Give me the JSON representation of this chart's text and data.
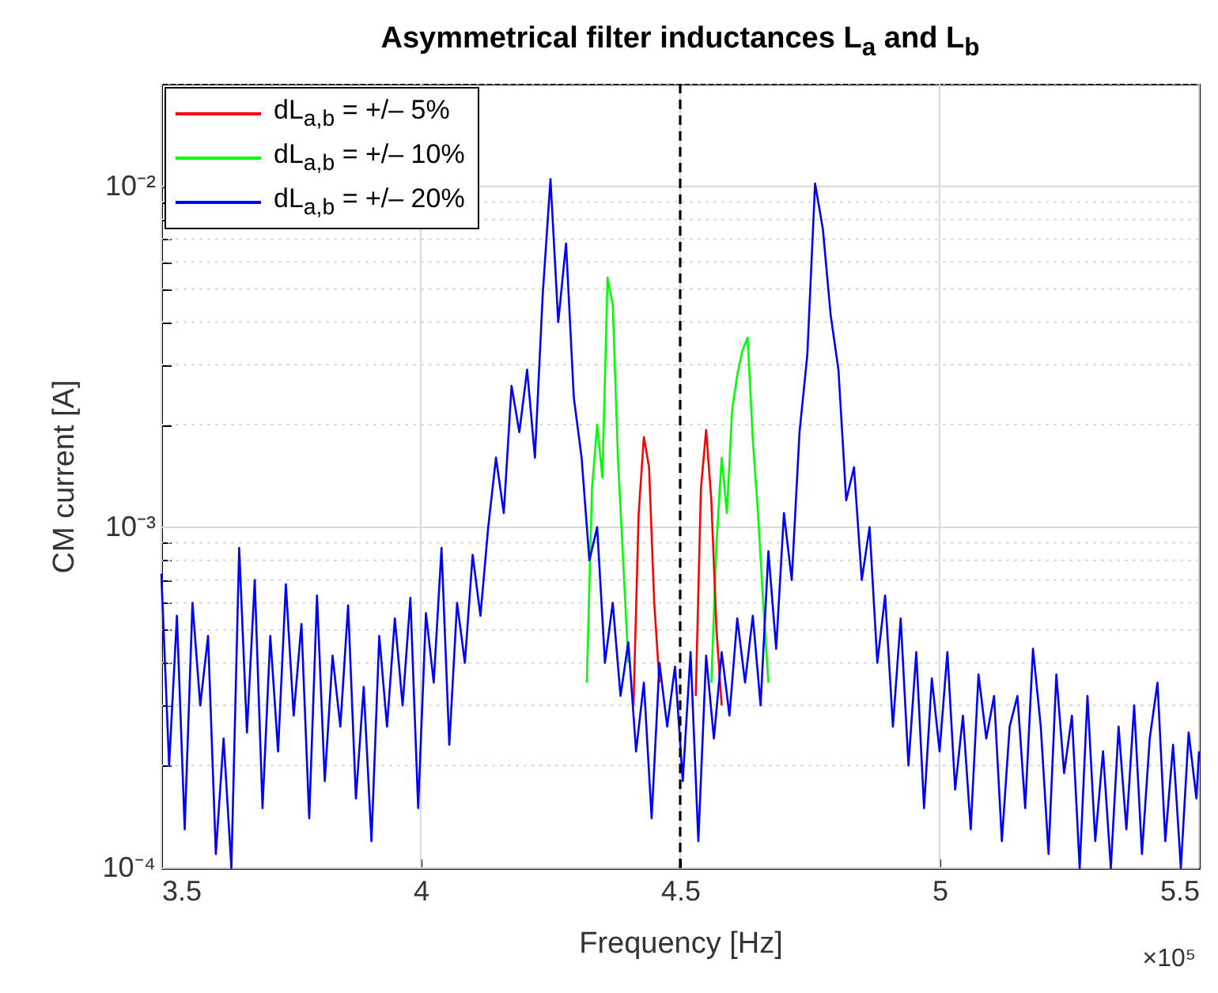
{
  "chart_data": {
    "type": "line",
    "title": "Asymmetrical filter inductances L$_{a}$ and L$_{b}$",
    "xlabel": "Frequency   [Hz]",
    "ylabel": "CM current   [A]",
    "annotations": [
      "×10⁵"
    ],
    "log": "y",
    "grid": true,
    "legend": "top left",
    "line_style": "solid",
    "marker": "none",
    "xlim": [
      3.5,
      5.5
    ],
    "xticks": [
      3.5,
      4,
      4.5,
      5,
      5.5
    ],
    "ylim": [
      0.0001,
      0.02
    ],
    "yticks": [
      {
        "value": 0.0001,
        "label": "10⁻⁴"
      },
      {
        "value": 0.0002,
        "label": null
      },
      {
        "value": 0.0003,
        "label": null
      },
      {
        "value": 0.0004,
        "label": null
      },
      {
        "value": 0.0005,
        "label": null
      },
      {
        "value": 0.0006,
        "label": null
      },
      {
        "value": 0.0007,
        "label": null
      },
      {
        "value": 0.0008,
        "label": null
      },
      {
        "value": 0.0009,
        "label": null
      },
      {
        "value": 0.001,
        "label": "10⁻³"
      },
      {
        "value": 0.002,
        "label": null
      },
      {
        "value": 0.003,
        "label": null
      },
      {
        "value": 0.004,
        "label": null
      },
      {
        "value": 0.005,
        "label": null
      },
      {
        "value": 0.006,
        "label": null
      },
      {
        "value": 0.007,
        "label": null
      },
      {
        "value": 0.008,
        "label": null
      },
      {
        "value": 0.009,
        "label": null
      },
      {
        "value": 0.01,
        "label": "10⁻²"
      },
      {
        "value": 0.02,
        "label": null
      }
    ],
    "ref_lines": [
      {
        "axis": "x",
        "value": 4.5,
        "color": "#000000",
        "line_style": "dashed"
      }
    ],
    "series": [
      {
        "name": "dL$_{a,b}$ = +/– 5%",
        "color": "#ff0000",
        "x": [
          4.41,
          4.42,
          4.43,
          4.44,
          4.45,
          4.46,
          4.5,
          4.53,
          4.54,
          4.55,
          4.56,
          4.57,
          4.58
        ],
        "values": [
          0.0003,
          0.0011,
          0.00184,
          0.0015,
          0.0006,
          0.00035,
          null,
          0.00032,
          0.0013,
          0.00193,
          0.0012,
          0.0005,
          0.0003
        ]
      },
      {
        "name": "dL$_{a,b}$ = +/– 10%",
        "color": "#00ff00",
        "x": [
          4.32,
          4.33,
          4.34,
          4.35,
          4.36,
          4.37,
          4.38,
          4.39,
          4.4,
          4.41,
          4.48,
          4.56,
          4.57,
          4.58,
          4.59,
          4.6,
          4.61,
          4.62,
          4.63,
          4.64,
          4.65,
          4.66,
          4.67
        ],
        "values": [
          0.00035,
          0.0013,
          0.002,
          0.0014,
          0.0054,
          0.0045,
          0.0016,
          0.0008,
          0.0004,
          null,
          null,
          0.00035,
          0.0009,
          0.0016,
          0.0011,
          0.0022,
          0.0028,
          0.0033,
          0.0036,
          0.0018,
          0.0011,
          0.0006,
          0.00035
        ]
      },
      {
        "name": "dL$_{a,b}$ = +/– 20%",
        "color": "#0000ff",
        "x": [
          3.5,
          3.515,
          3.53,
          3.545,
          3.56,
          3.575,
          3.59,
          3.605,
          3.62,
          3.635,
          3.65,
          3.665,
          3.68,
          3.695,
          3.71,
          3.725,
          3.74,
          3.755,
          3.77,
          3.785,
          3.8,
          3.815,
          3.83,
          3.845,
          3.86,
          3.875,
          3.89,
          3.905,
          3.92,
          3.935,
          3.95,
          3.965,
          3.98,
          3.995,
          4.01,
          4.025,
          4.04,
          4.055,
          4.07,
          4.085,
          4.1,
          4.115,
          4.13,
          4.145,
          4.16,
          4.175,
          4.19,
          4.205,
          4.22,
          4.235,
          4.25,
          4.265,
          4.28,
          4.295,
          4.31,
          4.325,
          4.34,
          4.355,
          4.37,
          4.385,
          4.4,
          4.415,
          4.43,
          4.445,
          4.46,
          4.475,
          4.49,
          4.505,
          4.52,
          4.535,
          4.55,
          4.565,
          4.58,
          4.595,
          4.61,
          4.625,
          4.64,
          4.655,
          4.67,
          4.685,
          4.7,
          4.715,
          4.73,
          4.745,
          4.76,
          4.775,
          4.79,
          4.805,
          4.82,
          4.835,
          4.85,
          4.865,
          4.88,
          4.895,
          4.91,
          4.925,
          4.94,
          4.955,
          4.97,
          4.985,
          5.0,
          5.015,
          5.03,
          5.045,
          5.06,
          5.075,
          5.09,
          5.105,
          5.12,
          5.135,
          5.15,
          5.165,
          5.18,
          5.195,
          5.21,
          5.225,
          5.24,
          5.255,
          5.27,
          5.285,
          5.3,
          5.315,
          5.33,
          5.345,
          5.36,
          5.375,
          5.39,
          5.405,
          5.42,
          5.435,
          5.45,
          5.465,
          5.48,
          5.495,
          5.5
        ],
        "values": [
          0.00073,
          0.0002,
          0.00055,
          0.00013,
          0.0006,
          0.0003,
          0.00048,
          0.00011,
          0.00024,
          0.0001,
          0.00087,
          0.00025,
          0.0007,
          0.00015,
          0.00048,
          0.00022,
          0.00068,
          0.00028,
          0.00052,
          0.00014,
          0.00063,
          0.00018,
          0.00042,
          0.00026,
          0.00059,
          0.00016,
          0.00034,
          0.00012,
          0.00048,
          0.00026,
          0.00054,
          0.0003,
          0.00062,
          0.00015,
          0.00056,
          0.00035,
          0.00087,
          0.00023,
          0.0006,
          0.0004,
          0.00083,
          0.00055,
          0.001,
          0.0016,
          0.0011,
          0.0026,
          0.0019,
          0.0029,
          0.0016,
          0.0048,
          0.0105,
          0.004,
          0.0068,
          0.0024,
          0.0016,
          0.0008,
          0.001,
          0.0004,
          0.0006,
          0.00032,
          0.00046,
          0.00022,
          0.00035,
          0.00014,
          0.0004,
          0.00026,
          0.00039,
          0.00018,
          0.00043,
          0.00012,
          0.00042,
          0.00024,
          0.00043,
          0.00028,
          0.00054,
          0.00035,
          0.00055,
          0.0003,
          0.00085,
          0.00044,
          0.0011,
          0.0007,
          0.0019,
          0.0032,
          0.0102,
          0.0075,
          0.0042,
          0.0029,
          0.0012,
          0.0015,
          0.0007,
          0.001,
          0.0004,
          0.00063,
          0.00026,
          0.00054,
          0.0002,
          0.00043,
          0.00015,
          0.00036,
          0.00022,
          0.00043,
          0.00017,
          0.00028,
          0.00013,
          0.00037,
          0.00024,
          0.00032,
          0.00012,
          0.00026,
          0.00032,
          0.00015,
          0.00044,
          0.00026,
          0.00011,
          0.00037,
          0.00019,
          0.00028,
          0.0001,
          0.00032,
          0.00012,
          0.00022,
          0.0001,
          0.00026,
          0.00013,
          0.0003,
          0.00011,
          0.00024,
          0.00035,
          0.00012,
          0.00023,
          0.0001,
          0.00025,
          0.00016,
          0.00022
        ]
      }
    ]
  }
}
